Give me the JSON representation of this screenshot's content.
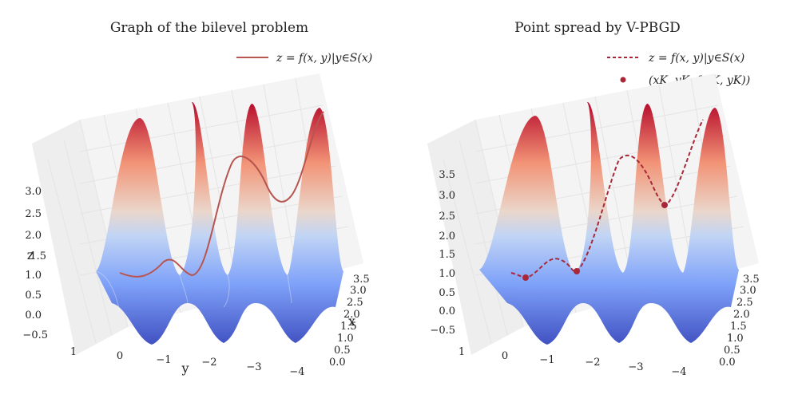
{
  "chart_data": [
    {
      "type": "surface3d",
      "title": "Graph of the bilevel problem",
      "xlabel": "x",
      "ylabel": "y",
      "zlabel": "z",
      "x_ticks": [
        "0.0",
        "0.5",
        "1.0",
        "1.5",
        "2.0",
        "2.5",
        "3.0",
        "3.5"
      ],
      "y_ticks": [
        "1",
        "0",
        "−1",
        "−2",
        "−3",
        "−4"
      ],
      "z_ticks": [
        "−0.5",
        "0.0",
        "0.5",
        "1.0",
        "1.5",
        "2.0",
        "2.5",
        "3.0"
      ],
      "xlim": [
        0,
        3.5
      ],
      "ylim": [
        -4,
        1
      ],
      "zlim": [
        -0.5,
        3.0
      ],
      "colormap": "coolwarm",
      "legend": {
        "placement": "top-right",
        "entries": [
          {
            "label": "z = f(x, y)|y∈S(x)",
            "style": "solid",
            "color": "#b85450"
          }
        ]
      },
      "curve": {
        "name": "z = f(x, y)|y∈S(x)",
        "x": [
          0.0,
          0.5,
          1.0,
          1.5,
          2.0,
          2.5,
          3.0,
          3.5
        ],
        "y": [
          0.0,
          -0.6,
          -1.2,
          -1.7,
          -2.3,
          -2.8,
          -3.4,
          -4.0
        ],
        "z": [
          1.0,
          0.95,
          1.3,
          1.0,
          2.3,
          3.0,
          2.3,
          3.2
        ]
      }
    },
    {
      "type": "surface3d",
      "title": "Point spread by V-PBGD",
      "xlabel": "",
      "ylabel": "",
      "zlabel": "",
      "x_ticks": [
        "0.0",
        "0.5",
        "1.0",
        "1.5",
        "2.0",
        "2.5",
        "3.0",
        "3.5"
      ],
      "y_ticks": [
        "1",
        "0",
        "−1",
        "−2",
        "−3",
        "−4"
      ],
      "z_ticks": [
        "−0.5",
        "0.0",
        "0.5",
        "1.0",
        "1.5",
        "2.0",
        "2.5",
        "3.0",
        "3.5"
      ],
      "xlim": [
        0,
        3.5
      ],
      "ylim": [
        -4,
        1
      ],
      "zlim": [
        -0.5,
        3.5
      ],
      "colormap": "coolwarm",
      "legend": {
        "placement": "top-right",
        "entries": [
          {
            "label": "z = f(x, y)|y∈S(x)",
            "style": "dashed",
            "color": "#a8283a"
          },
          {
            "label": "(xK, yK, f(xK, yK))",
            "style": "marker",
            "color": "#a8283a"
          }
        ]
      },
      "curve": {
        "name": "z = f(x, y)|y∈S(x)",
        "x": [
          0.0,
          0.5,
          1.0,
          1.5,
          2.0,
          2.5,
          3.0,
          3.5
        ],
        "y": [
          0.0,
          -0.6,
          -1.2,
          -1.7,
          -2.3,
          -2.8,
          -3.4,
          -4.0
        ],
        "z": [
          1.0,
          0.95,
          1.3,
          1.0,
          2.3,
          3.0,
          2.3,
          3.2
        ]
      },
      "points": {
        "name": "(xK, yK, f(xK, yK))",
        "x": [
          0.4,
          1.2,
          2.6
        ],
        "y": [
          -0.4,
          -1.6,
          -3.1
        ],
        "z": [
          0.85,
          1.05,
          2.2
        ]
      }
    }
  ],
  "legend_text": {
    "left_line": "z = f(x, y)|y∈S(x)",
    "right_line": "z = f(x, y)|y∈S(x)",
    "right_point": "(xK, yK, f(xK, yK))"
  }
}
